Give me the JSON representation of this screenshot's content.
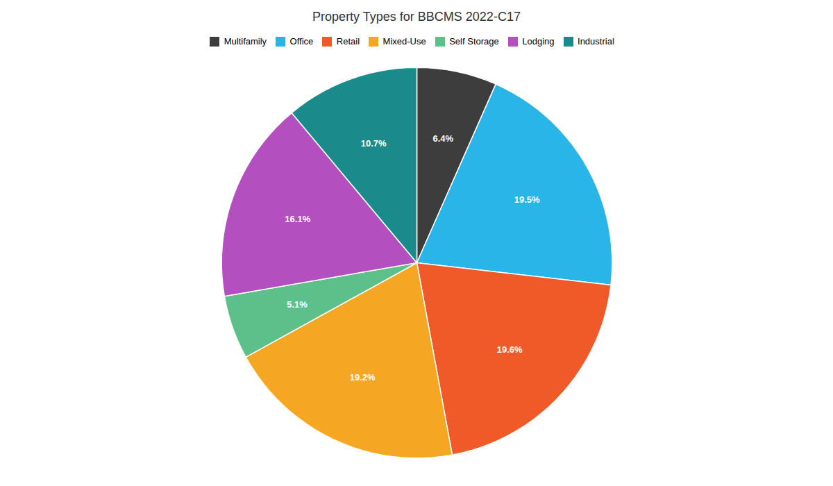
{
  "chart_data": {
    "type": "pie",
    "title": "Property Types for BBCMS 2022-C17",
    "categories": [
      "Multifamily",
      "Office",
      "Retail",
      "Mixed-Use",
      "Self Storage",
      "Lodging",
      "Industrial"
    ],
    "values": [
      6.4,
      19.5,
      19.6,
      19.2,
      5.1,
      16.1,
      10.7
    ],
    "value_labels": [
      "6.4%",
      "19.5%",
      "19.6%",
      "19.2%",
      "5.1%",
      "16.1%",
      "10.7%"
    ],
    "colors": [
      "#3d3d3d",
      "#29b5e8",
      "#f05a28",
      "#f5a623",
      "#5dbf8a",
      "#b44fc0",
      "#1a8a8a"
    ],
    "data_labels": true,
    "legend": "top"
  }
}
